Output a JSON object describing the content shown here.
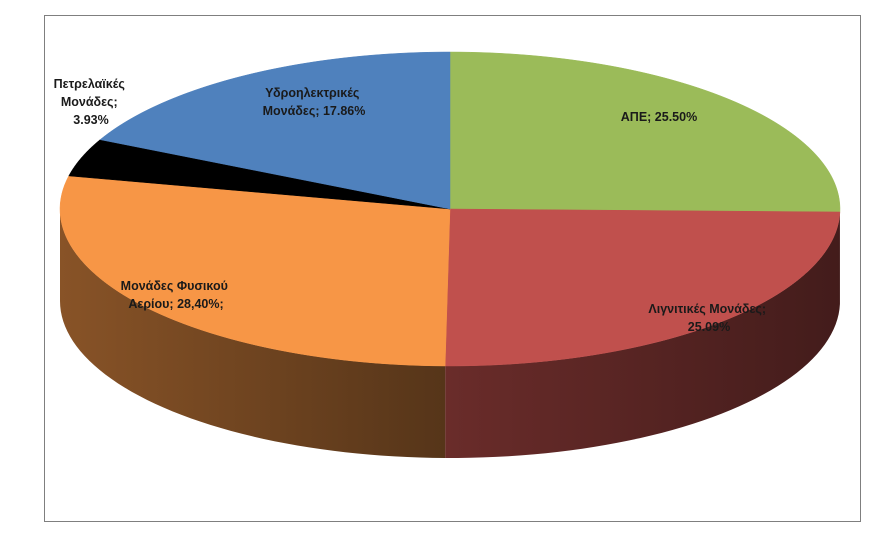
{
  "chart_data": {
    "type": "pie",
    "title": "",
    "style": "3d",
    "slices": [
      {
        "label": "ΑΠΕ",
        "value": 25.5,
        "display": "25.50%",
        "color": "#9BBB59"
      },
      {
        "label": "Λιγνιτικές Μονάδες",
        "value": 25.09,
        "display": "25.09%",
        "color": "#C0504D"
      },
      {
        "label": "Μονάδες Φυσικού Αερίου",
        "value": 28.4,
        "display": "28,40%;",
        "color": "#F79646"
      },
      {
        "label": "Πετρελαϊκές Μονάδες",
        "value": 3.93,
        "display": "3.93%",
        "color": "#000000"
      },
      {
        "label": "Υδροηλεκτρικές Μονάδες",
        "value": 17.86,
        "display": "17.86%",
        "color": "#4F81BD"
      }
    ],
    "labels": {
      "ape": [
        "ΑΠΕ; 25.50%"
      ],
      "lignite": [
        "Λιγνιτικές Μονάδες;",
        "25.09%"
      ],
      "gas": [
        "Μονάδες Φυσικού",
        "Αερίου; 28,40%;"
      ],
      "oil": [
        "Πετρελαϊκές",
        "Μονάδες;",
        "3.93%"
      ],
      "hydro": [
        "Υδροηλεκτρικές",
        "Μονάδες; 17.86%"
      ]
    }
  }
}
